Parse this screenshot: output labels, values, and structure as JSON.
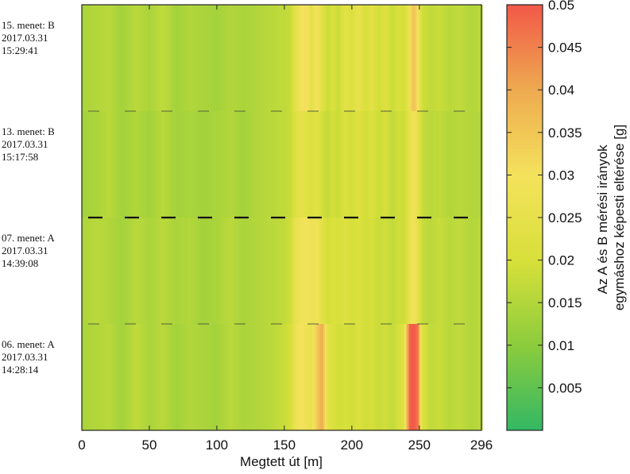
{
  "chart_data": {
    "type": "heatmap",
    "xlabel": "Megtett út [m]",
    "x_ticks": [
      0,
      50,
      100,
      150,
      200,
      250,
      296
    ],
    "xlim": [
      0,
      296
    ],
    "colorbar": {
      "label_line1": "Az A és B mérési irányok",
      "label_line2": "egymáshoz képesti eltérése [g]",
      "range": [
        0,
        0.05
      ],
      "ticks": [
        "0.005",
        "0.01",
        "0.015",
        "0.02",
        "0.025",
        "0.03",
        "0.035",
        "0.04",
        "0.045",
        "0.05"
      ],
      "tick_values": [
        0.005,
        0.01,
        0.015,
        0.02,
        0.025,
        0.03,
        0.035,
        0.04,
        0.045,
        0.05
      ],
      "colors": [
        "#33b864",
        "#8ccc3c",
        "#d8e03a",
        "#f4e25c",
        "#eeaa50",
        "#f25848"
      ]
    },
    "rows": [
      {
        "line1": "15. menet: B",
        "line2": "2017.03.31",
        "line3": "15:29:41",
        "profile": [
          [
            0,
            0.014
          ],
          [
            10,
            0.015
          ],
          [
            20,
            0.016
          ],
          [
            30,
            0.013
          ],
          [
            40,
            0.016
          ],
          [
            50,
            0.014
          ],
          [
            60,
            0.017
          ],
          [
            70,
            0.013
          ],
          [
            80,
            0.015
          ],
          [
            90,
            0.014
          ],
          [
            100,
            0.013
          ],
          [
            110,
            0.015
          ],
          [
            120,
            0.014
          ],
          [
            130,
            0.015
          ],
          [
            140,
            0.016
          ],
          [
            150,
            0.017
          ],
          [
            155,
            0.018
          ],
          [
            158,
            0.024
          ],
          [
            162,
            0.029
          ],
          [
            166,
            0.031
          ],
          [
            170,
            0.024
          ],
          [
            174,
            0.03
          ],
          [
            178,
            0.023
          ],
          [
            182,
            0.018
          ],
          [
            186,
            0.021
          ],
          [
            190,
            0.018
          ],
          [
            195,
            0.024
          ],
          [
            200,
            0.021
          ],
          [
            205,
            0.026
          ],
          [
            210,
            0.02
          ],
          [
            215,
            0.024
          ],
          [
            220,
            0.019
          ],
          [
            225,
            0.022
          ],
          [
            230,
            0.018
          ],
          [
            235,
            0.021
          ],
          [
            238,
            0.019
          ],
          [
            241,
            0.023
          ],
          [
            243,
            0.031
          ],
          [
            246,
            0.036
          ],
          [
            249,
            0.03
          ],
          [
            252,
            0.019
          ],
          [
            258,
            0.017
          ],
          [
            265,
            0.018
          ],
          [
            272,
            0.016
          ],
          [
            280,
            0.017
          ],
          [
            288,
            0.015
          ],
          [
            296,
            0.016
          ]
        ]
      },
      {
        "line1": "13. menet: B",
        "line2": "2017.03.31",
        "line3": "15:17:58",
        "profile": [
          [
            0,
            0.013
          ],
          [
            10,
            0.014
          ],
          [
            20,
            0.016
          ],
          [
            30,
            0.013
          ],
          [
            40,
            0.015
          ],
          [
            50,
            0.013
          ],
          [
            60,
            0.016
          ],
          [
            70,
            0.013
          ],
          [
            80,
            0.014
          ],
          [
            90,
            0.013
          ],
          [
            100,
            0.014
          ],
          [
            110,
            0.015
          ],
          [
            120,
            0.013
          ],
          [
            130,
            0.015
          ],
          [
            140,
            0.016
          ],
          [
            150,
            0.017
          ],
          [
            155,
            0.018
          ],
          [
            158,
            0.022
          ],
          [
            162,
            0.025
          ],
          [
            166,
            0.023
          ],
          [
            170,
            0.021
          ],
          [
            174,
            0.024
          ],
          [
            178,
            0.019
          ],
          [
            182,
            0.017
          ],
          [
            186,
            0.02
          ],
          [
            190,
            0.018
          ],
          [
            195,
            0.021
          ],
          [
            200,
            0.019
          ],
          [
            205,
            0.022
          ],
          [
            210,
            0.019
          ],
          [
            215,
            0.021
          ],
          [
            220,
            0.018
          ],
          [
            225,
            0.02
          ],
          [
            230,
            0.017
          ],
          [
            235,
            0.019
          ],
          [
            238,
            0.018
          ],
          [
            241,
            0.021
          ],
          [
            243,
            0.026
          ],
          [
            246,
            0.029
          ],
          [
            249,
            0.024
          ],
          [
            252,
            0.018
          ],
          [
            258,
            0.016
          ],
          [
            265,
            0.017
          ],
          [
            272,
            0.015
          ],
          [
            280,
            0.016
          ],
          [
            288,
            0.015
          ],
          [
            296,
            0.015
          ]
        ]
      },
      {
        "line1": "07. menet: A",
        "line2": "2017.03.31",
        "line3": "14:39:08",
        "profile": [
          [
            0,
            0.014
          ],
          [
            10,
            0.016
          ],
          [
            20,
            0.015
          ],
          [
            30,
            0.013
          ],
          [
            40,
            0.016
          ],
          [
            50,
            0.014
          ],
          [
            60,
            0.016
          ],
          [
            70,
            0.014
          ],
          [
            80,
            0.015
          ],
          [
            90,
            0.013
          ],
          [
            100,
            0.014
          ],
          [
            110,
            0.016
          ],
          [
            120,
            0.014
          ],
          [
            130,
            0.015
          ],
          [
            140,
            0.016
          ],
          [
            150,
            0.017
          ],
          [
            155,
            0.019
          ],
          [
            158,
            0.026
          ],
          [
            162,
            0.028
          ],
          [
            166,
            0.03
          ],
          [
            170,
            0.027
          ],
          [
            174,
            0.029
          ],
          [
            178,
            0.024
          ],
          [
            182,
            0.019
          ],
          [
            186,
            0.021
          ],
          [
            190,
            0.02
          ],
          [
            195,
            0.022
          ],
          [
            200,
            0.02
          ],
          [
            205,
            0.021
          ],
          [
            210,
            0.019
          ],
          [
            215,
            0.02
          ],
          [
            220,
            0.018
          ],
          [
            225,
            0.019
          ],
          [
            230,
            0.017
          ],
          [
            235,
            0.019
          ],
          [
            238,
            0.018
          ],
          [
            241,
            0.021
          ],
          [
            243,
            0.027
          ],
          [
            246,
            0.029
          ],
          [
            249,
            0.024
          ],
          [
            252,
            0.018
          ],
          [
            258,
            0.016
          ],
          [
            265,
            0.018
          ],
          [
            272,
            0.016
          ],
          [
            280,
            0.017
          ],
          [
            288,
            0.015
          ],
          [
            296,
            0.016
          ]
        ]
      },
      {
        "line1": "06. menet: A",
        "line2": "2017.03.31",
        "line3": "14:28:14",
        "profile": [
          [
            0,
            0.014
          ],
          [
            10,
            0.015
          ],
          [
            20,
            0.016
          ],
          [
            30,
            0.013
          ],
          [
            40,
            0.017
          ],
          [
            50,
            0.014
          ],
          [
            60,
            0.016
          ],
          [
            70,
            0.013
          ],
          [
            80,
            0.015
          ],
          [
            90,
            0.014
          ],
          [
            100,
            0.013
          ],
          [
            110,
            0.016
          ],
          [
            120,
            0.014
          ],
          [
            130,
            0.015
          ],
          [
            140,
            0.016
          ],
          [
            150,
            0.018
          ],
          [
            155,
            0.02
          ],
          [
            158,
            0.027
          ],
          [
            162,
            0.03
          ],
          [
            166,
            0.028
          ],
          [
            170,
            0.026
          ],
          [
            174,
            0.034
          ],
          [
            178,
            0.04
          ],
          [
            182,
            0.024
          ],
          [
            186,
            0.021
          ],
          [
            190,
            0.019
          ],
          [
            195,
            0.02
          ],
          [
            200,
            0.019
          ],
          [
            205,
            0.021
          ],
          [
            210,
            0.019
          ],
          [
            215,
            0.02
          ],
          [
            220,
            0.018
          ],
          [
            225,
            0.019
          ],
          [
            230,
            0.017
          ],
          [
            235,
            0.02
          ],
          [
            238,
            0.021
          ],
          [
            241,
            0.038
          ],
          [
            243,
            0.049
          ],
          [
            246,
            0.05
          ],
          [
            249,
            0.046
          ],
          [
            252,
            0.022
          ],
          [
            258,
            0.017
          ],
          [
            265,
            0.018
          ],
          [
            272,
            0.016
          ],
          [
            280,
            0.017
          ],
          [
            288,
            0.015
          ],
          [
            296,
            0.016
          ]
        ]
      }
    ]
  }
}
